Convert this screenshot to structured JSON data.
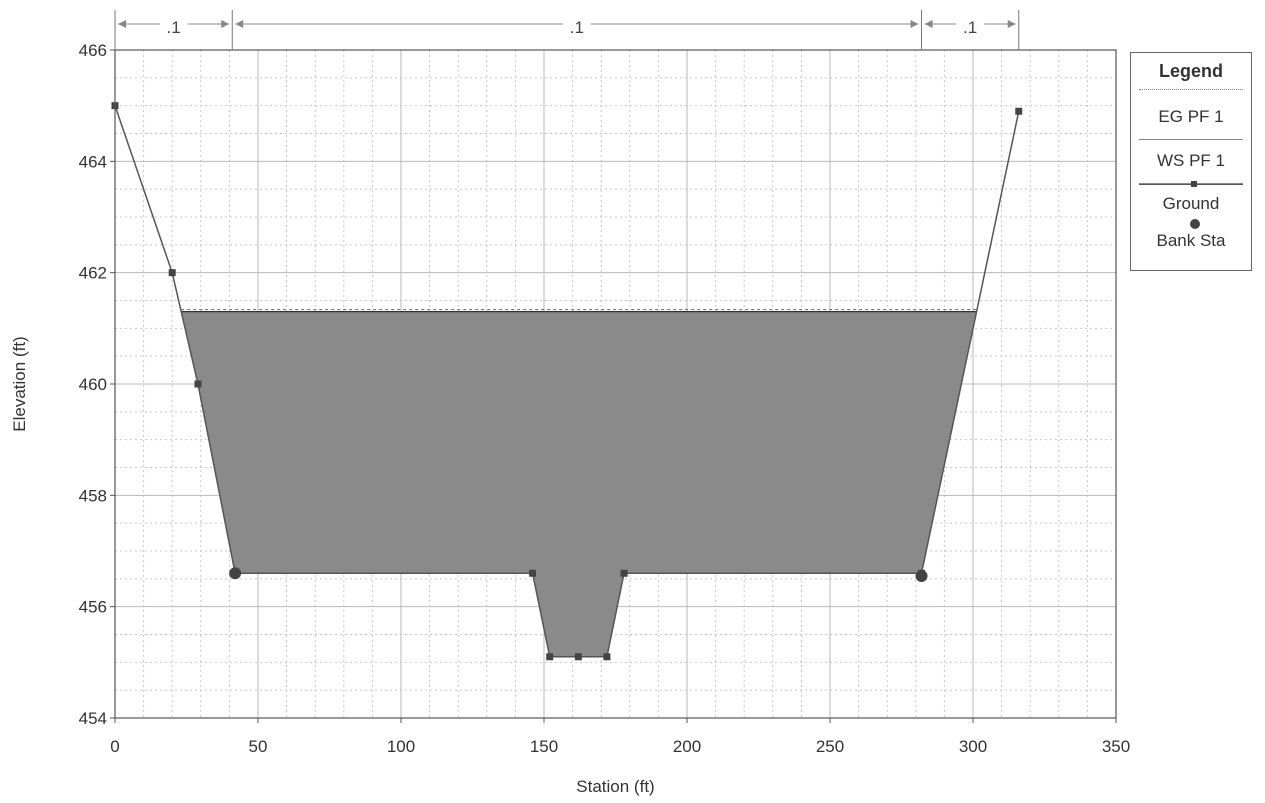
{
  "chart_data": {
    "type": "area",
    "title": "",
    "xlabel": "Station (ft)",
    "ylabel": "Elevation (ft)",
    "xlim": [
      0,
      350
    ],
    "ylim": [
      454,
      466
    ],
    "x_ticks": [
      "0",
      "50",
      "100",
      "150",
      "200",
      "250",
      "300",
      "350"
    ],
    "y_ticks": [
      "454",
      "456",
      "458",
      "460",
      "462",
      "464",
      "466"
    ],
    "grid": true,
    "legend_position": "right",
    "manning_n": [
      {
        "label": ".1",
        "from": 0,
        "to": 41
      },
      {
        "label": ".1",
        "from": 41,
        "to": 282
      },
      {
        "label": ".1",
        "from": 282,
        "to": 316
      }
    ],
    "ground": {
      "name": "Ground",
      "points": [
        {
          "x": 0,
          "y": 465.0
        },
        {
          "x": 20,
          "y": 462.0
        },
        {
          "x": 29,
          "y": 460.0
        },
        {
          "x": 42,
          "y": 456.6
        },
        {
          "x": 146,
          "y": 456.6
        },
        {
          "x": 152,
          "y": 455.1
        },
        {
          "x": 162,
          "y": 455.1
        },
        {
          "x": 172,
          "y": 455.1
        },
        {
          "x": 178,
          "y": 456.6
        },
        {
          "x": 282,
          "y": 456.6
        },
        {
          "x": 316,
          "y": 464.9
        }
      ]
    },
    "bank_stations": {
      "name": "Bank Sta",
      "points": [
        {
          "x": 42,
          "y": 456.6
        },
        {
          "x": 282,
          "y": 456.55
        }
      ]
    },
    "water_surface": {
      "name": "WS PF 1",
      "elevation": 461.3
    },
    "energy_grade": {
      "name": "EG PF 1",
      "elevation": 461.3
    },
    "legend": {
      "title": "Legend",
      "entries": [
        "EG PF 1",
        "WS PF 1",
        "Ground",
        "Bank Sta"
      ]
    },
    "colors": {
      "water_fill": "#8a8a8a",
      "ground_line": "#555555",
      "markers": "#444444",
      "grid": "#b9b9b9"
    }
  }
}
